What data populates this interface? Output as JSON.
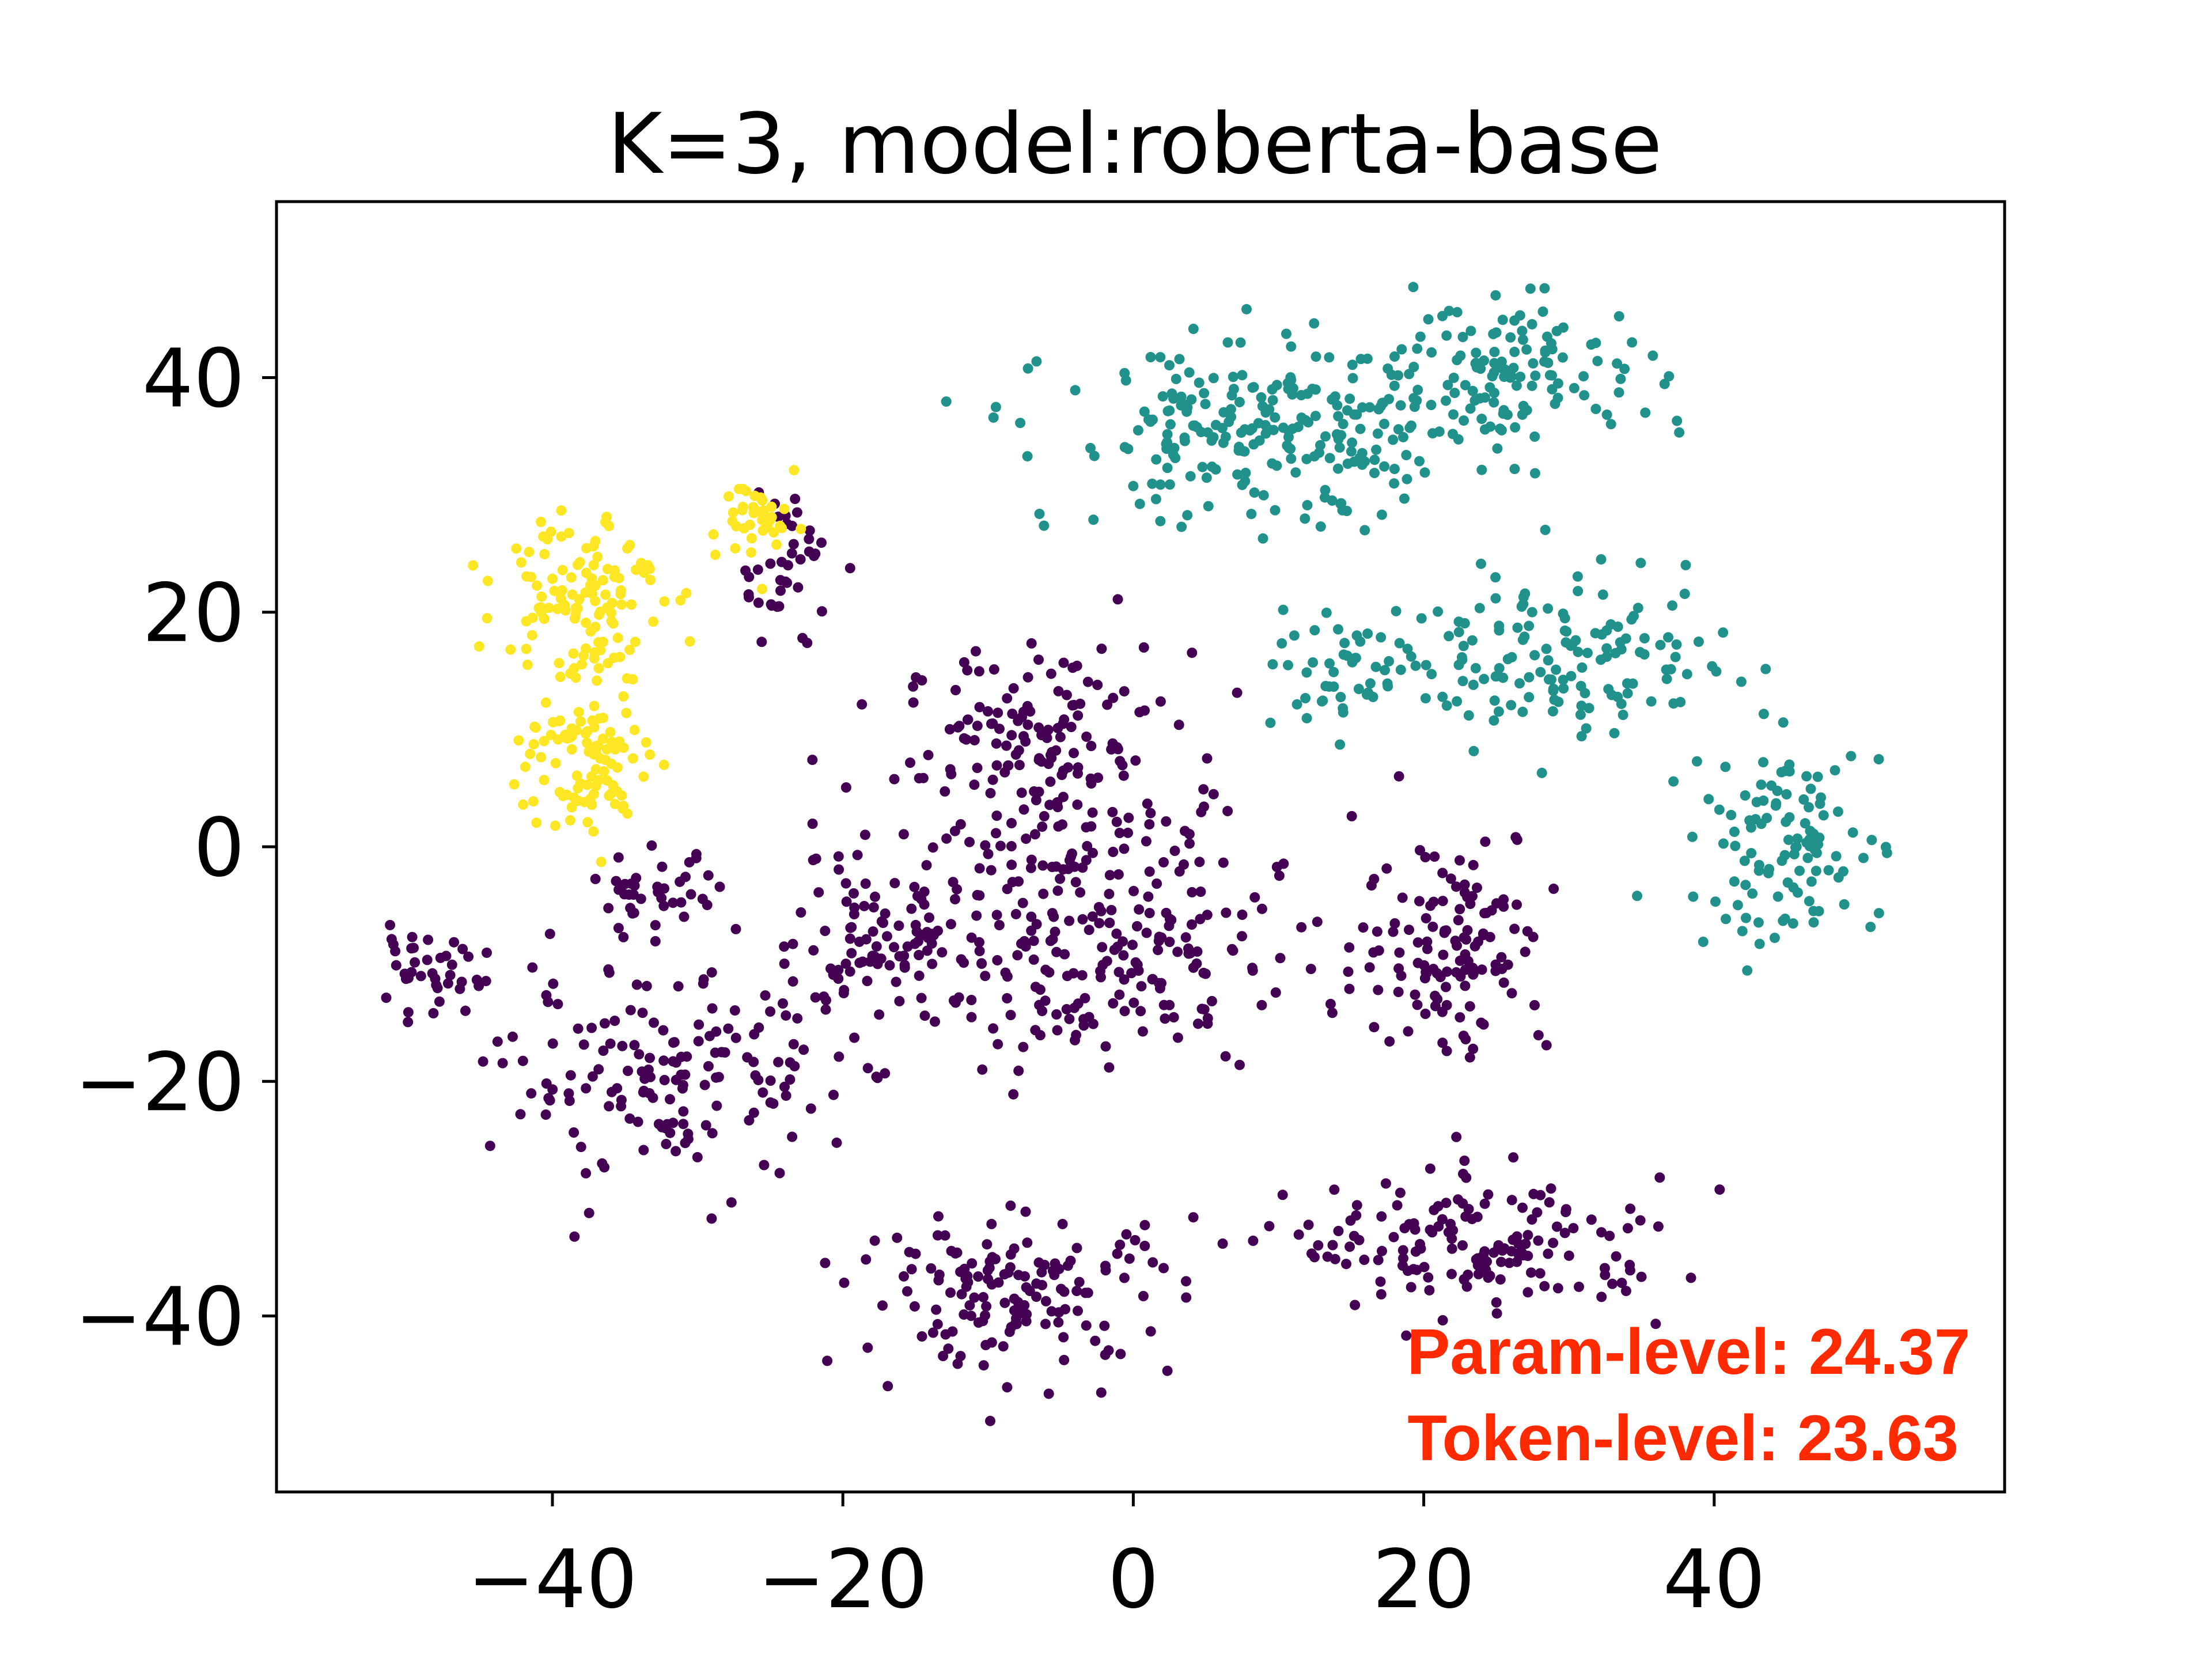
{
  "chart_data": {
    "type": "scatter",
    "title": "K=3, model:roberta-base",
    "xlabel": "",
    "ylabel": "",
    "xlim": [
      -59,
      60
    ],
    "ylim": [
      -55,
      55
    ],
    "grid": false,
    "x_ticks": [
      -40,
      -20,
      0,
      20,
      40
    ],
    "y_ticks": [
      -40,
      -20,
      0,
      20,
      40
    ],
    "x_tick_labels": [
      "−40",
      "−20",
      "0",
      "20",
      "40"
    ],
    "y_tick_labels": [
      "−40",
      "−20",
      "0",
      "20",
      "40"
    ],
    "series": [
      {
        "color": "#440154",
        "clusters": [
          {
            "center": [
              -6,
              8
            ],
            "spread": [
              9,
              8
            ],
            "n": 160
          },
          {
            "center": [
              -2,
              -8
            ],
            "spread": [
              11,
              10
            ],
            "n": 220
          },
          {
            "center": [
              -18,
              -8
            ],
            "spread": [
              8,
              8
            ],
            "n": 120
          },
          {
            "center": [
              -32,
              -20
            ],
            "spread": [
              10,
              8
            ],
            "n": 150
          },
          {
            "center": [
              -49,
              -11
            ],
            "spread": [
              4,
              3
            ],
            "n": 40
          },
          {
            "center": [
              -8,
              -38
            ],
            "spread": [
              10,
              6
            ],
            "n": 150
          },
          {
            "center": [
              22,
              -8
            ],
            "spread": [
              6,
              9
            ],
            "n": 130
          },
          {
            "center": [
              24,
              -34
            ],
            "spread": [
              12,
              5
            ],
            "n": 160
          },
          {
            "center": [
              -24,
              24
            ],
            "spread": [
              3,
              6
            ],
            "n": 40
          },
          {
            "center": [
              -33,
              -4
            ],
            "spread": [
              4,
              3
            ],
            "n": 40
          }
        ]
      },
      {
        "color": "#21918c",
        "clusters": [
          {
            "center": [
              10,
              35
            ],
            "spread": [
              14,
              7
            ],
            "n": 260
          },
          {
            "center": [
              27,
              41
            ],
            "spread": [
              8,
              5
            ],
            "n": 110
          },
          {
            "center": [
              30,
              16
            ],
            "spread": [
              10,
              6
            ],
            "n": 140
          },
          {
            "center": [
              45,
              0
            ],
            "spread": [
              6,
              8
            ],
            "n": 110
          },
          {
            "center": [
              14,
              15
            ],
            "spread": [
              6,
              4
            ],
            "n": 50
          }
        ]
      },
      {
        "color": "#fde725",
        "clusters": [
          {
            "center": [
              -38,
              22
            ],
            "spread": [
              5,
              7
            ],
            "n": 120
          },
          {
            "center": [
              -38,
              7
            ],
            "spread": [
              4,
              6
            ],
            "n": 100
          },
          {
            "center": [
              -25,
              28
            ],
            "spread": [
              3,
              4
            ],
            "n": 40
          }
        ]
      }
    ],
    "annotations": [
      {
        "text": "Param-level: 24.37",
        "color": "#ff2a00"
      },
      {
        "text": "Token-level: 23.63",
        "color": "#ff2a00"
      }
    ]
  }
}
